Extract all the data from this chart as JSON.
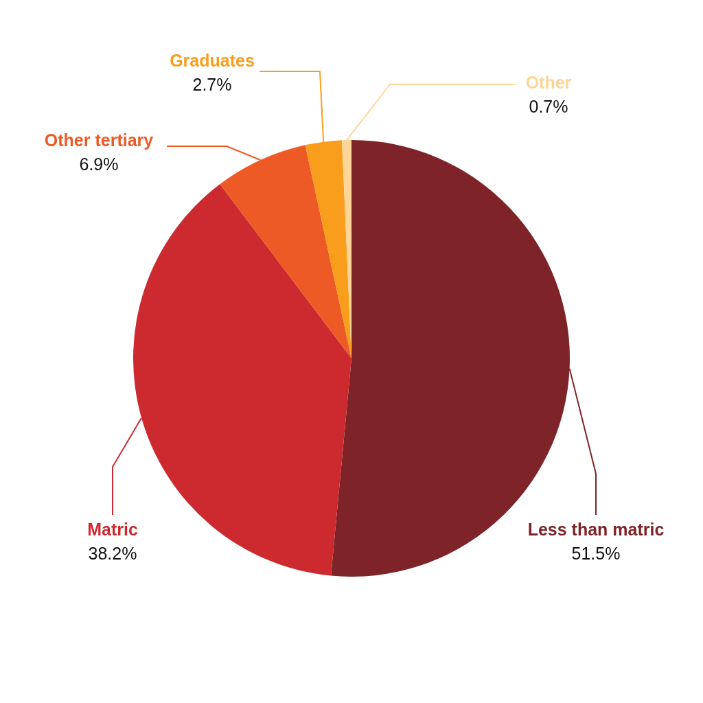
{
  "chart_data": {
    "type": "pie",
    "categories": [
      "Less than matric",
      "Matric",
      "Other tertiary",
      "Graduates",
      "Other"
    ],
    "values": [
      51.5,
      38.2,
      6.9,
      2.7,
      0.7
    ],
    "colors": [
      "#7e2428",
      "#cd2a2f",
      "#ee5a25",
      "#f99d1c",
      "#fdd598"
    ],
    "value_labels": [
      "51.5%",
      "38.2%",
      "6.9%",
      "2.7%",
      "0.7%"
    ]
  }
}
